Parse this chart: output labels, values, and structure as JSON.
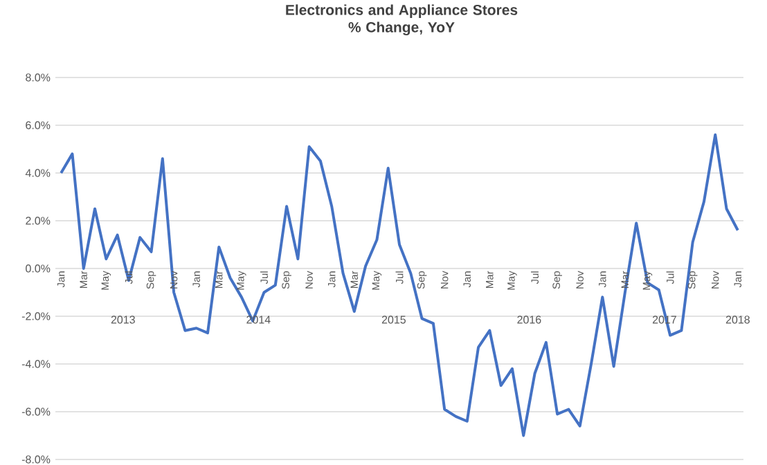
{
  "chart_data": {
    "type": "line",
    "title": "Electronics and Appliance Stores\n% Change, YoY",
    "categories": [
      "Jan",
      null,
      "Mar",
      null,
      "May",
      null,
      "Jul",
      null,
      "Sep",
      null,
      "Nov",
      null,
      "Jan",
      null,
      "Mar",
      null,
      "May",
      null,
      "Jul",
      null,
      "Sep",
      null,
      "Nov",
      null,
      "Jan",
      null,
      "Mar",
      null,
      "May",
      null,
      "Jul",
      null,
      "Sep",
      null,
      "Nov",
      null,
      "Jan",
      null,
      "Mar",
      null,
      "May",
      null,
      "Jul",
      null,
      "Sep",
      null,
      "Nov",
      null,
      "Jan",
      null,
      "Mar",
      null,
      "May",
      null,
      "Jul",
      null,
      "Sep",
      null,
      "Nov",
      null,
      "Jan"
    ],
    "series": [
      {
        "color": "#4472c4",
        "values": [
          4.0,
          4.8,
          0.0,
          2.5,
          0.4,
          1.4,
          -0.5,
          1.3,
          0.7,
          4.6,
          -1.0,
          -2.6,
          -2.5,
          -2.7,
          0.9,
          -0.4,
          -1.2,
          -2.2,
          -1.0,
          -0.7,
          2.6,
          0.4,
          5.1,
          4.5,
          2.6,
          -0.2,
          -1.8,
          0.1,
          1.2,
          4.2,
          1.0,
          -0.2,
          -2.1,
          -2.3,
          -5.9,
          -6.2,
          -6.4,
          -3.3,
          -2.6,
          -4.9,
          -4.2,
          -7.0,
          -4.4,
          -3.1,
          -6.1,
          -5.9,
          -6.6,
          -4.0,
          -1.2,
          -4.1,
          -1.0,
          1.9,
          -0.6,
          -0.9,
          -2.8,
          -2.6,
          1.1,
          2.8,
          5.6,
          2.5,
          1.6
        ]
      }
    ],
    "annotations": [
      "2013",
      "2014",
      "2015",
      "2016",
      "2017",
      "2018"
    ],
    "ylim": [
      -8,
      8
    ],
    "yticks": [
      {
        "value": -8,
        "label": "-8.0%"
      },
      {
        "value": -6,
        "label": "-6.0%"
      },
      {
        "value": -4,
        "label": "-4.0%"
      },
      {
        "value": -2,
        "label": "-2.0%"
      },
      {
        "value": 0,
        "label": "0.0%"
      },
      {
        "value": 2,
        "label": "2.0%"
      },
      {
        "value": 4,
        "label": "4.0%"
      },
      {
        "value": 6,
        "label": "6.0%"
      },
      {
        "value": 8,
        "label": "8.0%"
      }
    ],
    "grid": "y",
    "marker": "none",
    "line_style": "solid"
  }
}
